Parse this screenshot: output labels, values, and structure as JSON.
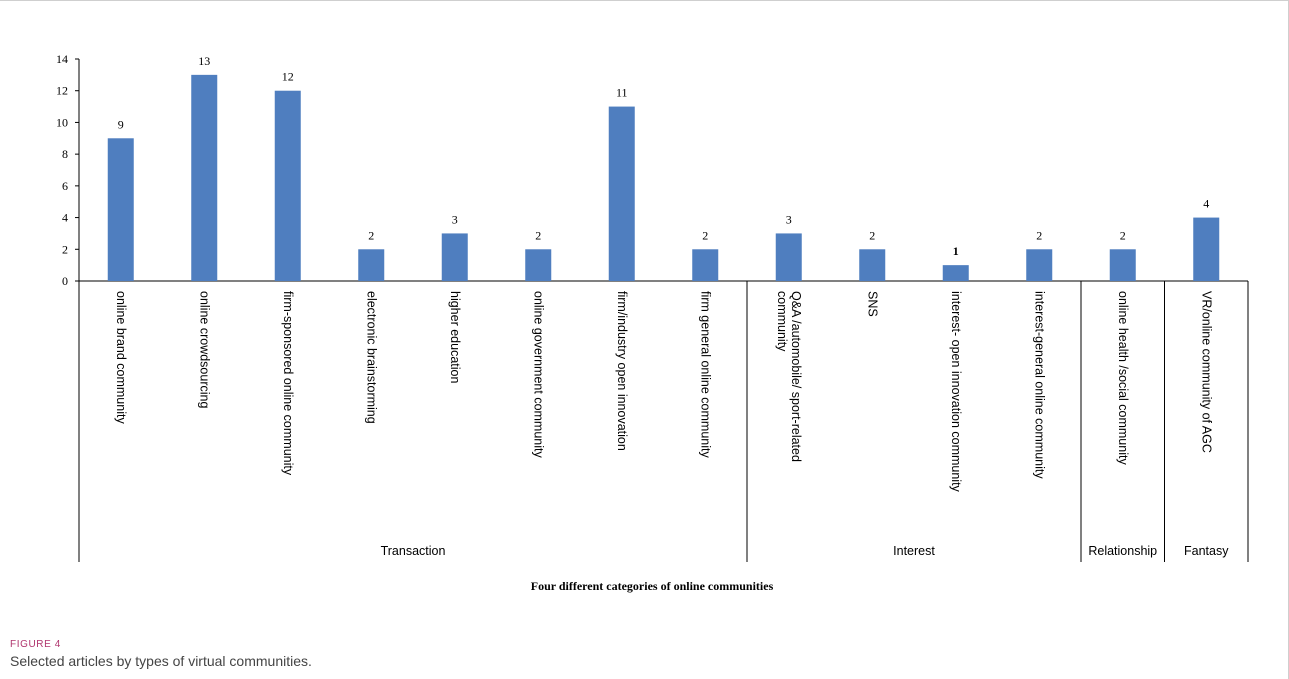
{
  "figure": {
    "label": "FIGURE 4",
    "caption": "Selected articles by types of virtual communities."
  },
  "chart_data": {
    "type": "bar",
    "title": "",
    "xlabel": "Four different categories of online communities",
    "ylabel": "",
    "ylim": [
      0,
      14
    ],
    "yticks": [
      0,
      2,
      4,
      6,
      8,
      10,
      12,
      14
    ],
    "grid": false,
    "bar_color": "#4f7ebf",
    "categories": [
      "online brand community",
      "online crowdsourcing",
      "firm-sponsored online community",
      "electronic brainstorming",
      "higher education",
      "online government community",
      "firm/industry open innovation",
      "firm general online community",
      "Q&A /automobile/ sport-related community",
      "SNS",
      "interest- open innovation community",
      "interest-general online community",
      "online health /social community",
      "VR/online community of AGC"
    ],
    "values": [
      9,
      13,
      12,
      2,
      3,
      2,
      11,
      2,
      3,
      2,
      1,
      2,
      2,
      4
    ],
    "data_labels": [
      "9",
      "13",
      "12",
      "2",
      "3",
      "2",
      "11",
      "2",
      "3",
      "2",
      "1",
      "2",
      "2",
      "4"
    ],
    "groups": [
      {
        "name": "Transaction",
        "start": 0,
        "end": 7
      },
      {
        "name": "Interest",
        "start": 8,
        "end": 11
      },
      {
        "name": "Relationship",
        "start": 12,
        "end": 12
      },
      {
        "name": "Fantasy",
        "start": 13,
        "end": 13
      }
    ]
  }
}
